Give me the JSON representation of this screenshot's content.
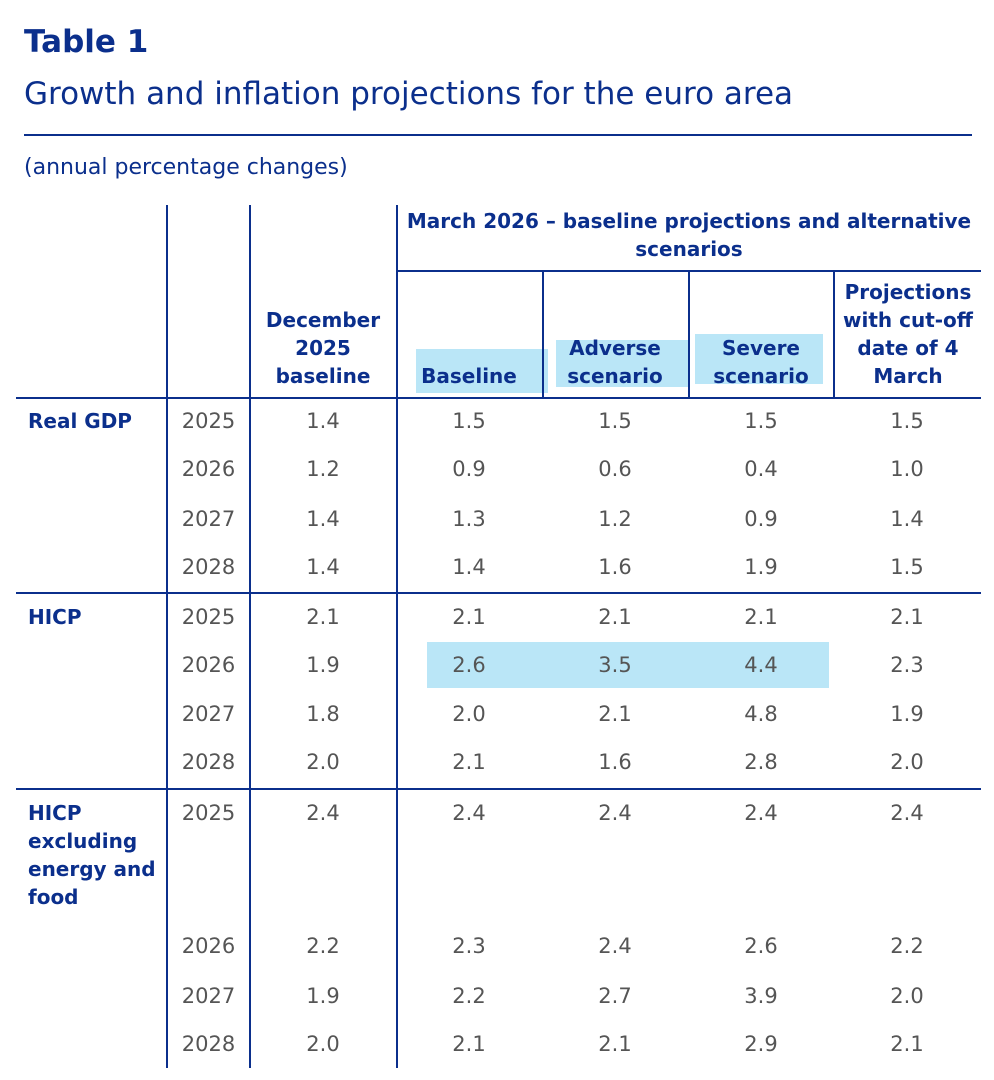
{
  "table": {
    "number": "Table 1",
    "title": "Growth and inflation projections for the euro area",
    "units": "(annual percentage changes)",
    "group_header": "March 2026 – baseline projections and alternative scenarios",
    "columns": {
      "dec2025": "December 2025 baseline",
      "baseline": "Baseline",
      "adverse": "Adverse scenario",
      "severe": "Severe scenario",
      "cutoff": "Projections with cut-off date of 4 March"
    },
    "highlight_color": "#aee2f6",
    "sections": [
      {
        "label": "Real GDP",
        "rows": [
          {
            "year": "2025",
            "values": [
              "1.4",
              "1.5",
              "1.5",
              "1.5",
              "1.5"
            ]
          },
          {
            "year": "2026",
            "values": [
              "1.2",
              "0.9",
              "0.6",
              "0.4",
              "1.0"
            ]
          },
          {
            "year": "2027",
            "values": [
              "1.4",
              "1.3",
              "1.2",
              "0.9",
              "1.4"
            ]
          },
          {
            "year": "2028",
            "values": [
              "1.4",
              "1.4",
              "1.6",
              "1.9",
              "1.5"
            ]
          }
        ]
      },
      {
        "label": "HICP",
        "rows": [
          {
            "year": "2025",
            "values": [
              "2.1",
              "2.1",
              "2.1",
              "2.1",
              "2.1"
            ]
          },
          {
            "year": "2026",
            "values": [
              "1.9",
              "2.6",
              "3.5",
              "4.4",
              "2.3"
            ]
          },
          {
            "year": "2027",
            "values": [
              "1.8",
              "2.0",
              "2.1",
              "4.8",
              "1.9"
            ]
          },
          {
            "year": "2028",
            "values": [
              "2.0",
              "2.1",
              "1.6",
              "2.8",
              "2.0"
            ]
          }
        ]
      },
      {
        "label": "HICP excluding energy and food",
        "rows": [
          {
            "year": "2025",
            "values": [
              "2.4",
              "2.4",
              "2.4",
              "2.4",
              "2.4"
            ]
          },
          {
            "year": "2026",
            "values": [
              "2.2",
              "2.3",
              "2.4",
              "2.6",
              "2.2"
            ]
          },
          {
            "year": "2027",
            "values": [
              "1.9",
              "2.2",
              "2.7",
              "3.9",
              "2.0"
            ]
          },
          {
            "year": "2028",
            "values": [
              "2.0",
              "2.1",
              "2.1",
              "2.9",
              "2.1"
            ]
          }
        ]
      }
    ]
  }
}
